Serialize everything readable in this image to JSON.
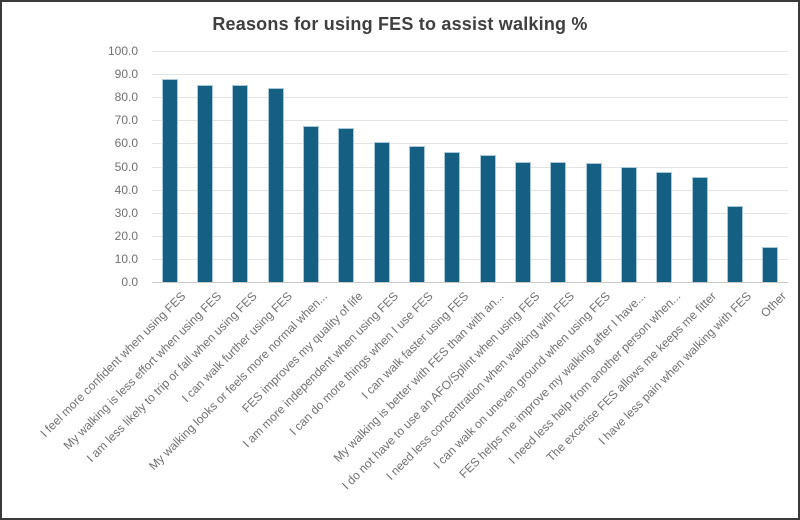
{
  "chart_data": {
    "type": "bar",
    "title": "Reasons for using FES to assist walking %",
    "categories": [
      "I feel more confident when using FES",
      "My walking is less effort when using FES",
      "I am less likely to trip or fall when using FES",
      "I can walk further using FES",
      "My walking looks or feels more normal when...",
      "FES improves my quality of life",
      "I am more independent when using FES",
      "I can do more things when I use FES",
      "I can walk faster using FES",
      "My walking is better with FES than with an...",
      "I do not have to use an AFO/Splint when using FES",
      "I need less concentration when walking with FES",
      "I can walk on uneven ground when using FES",
      "FES helps me improve my walking after I have...",
      "I need less help from another person when...",
      "The excerise FES allows me keeps me fitter",
      "I have less pain when walking with FES",
      "Other"
    ],
    "values": [
      88,
      85.5,
      85.5,
      84,
      67.5,
      66.5,
      60.5,
      59,
      56.5,
      55,
      52,
      52,
      51.5,
      50,
      47.5,
      45.5,
      33,
      15
    ],
    "xlabel": "",
    "ylabel": "",
    "ylim": [
      0,
      100
    ],
    "ytick_step": 10,
    "ytick_decimals": 1,
    "grid": true,
    "legend_position": "none",
    "colors": {
      "bar_fill": "#156082",
      "bar_border": "#a9c8d9",
      "gridline": "#e3e3e3",
      "baseline": "#c9c9c9",
      "axis_text": "#707070",
      "title_text": "#3f3f3f",
      "frame_border": "#3a3a3a",
      "background": "#ffffff"
    }
  }
}
